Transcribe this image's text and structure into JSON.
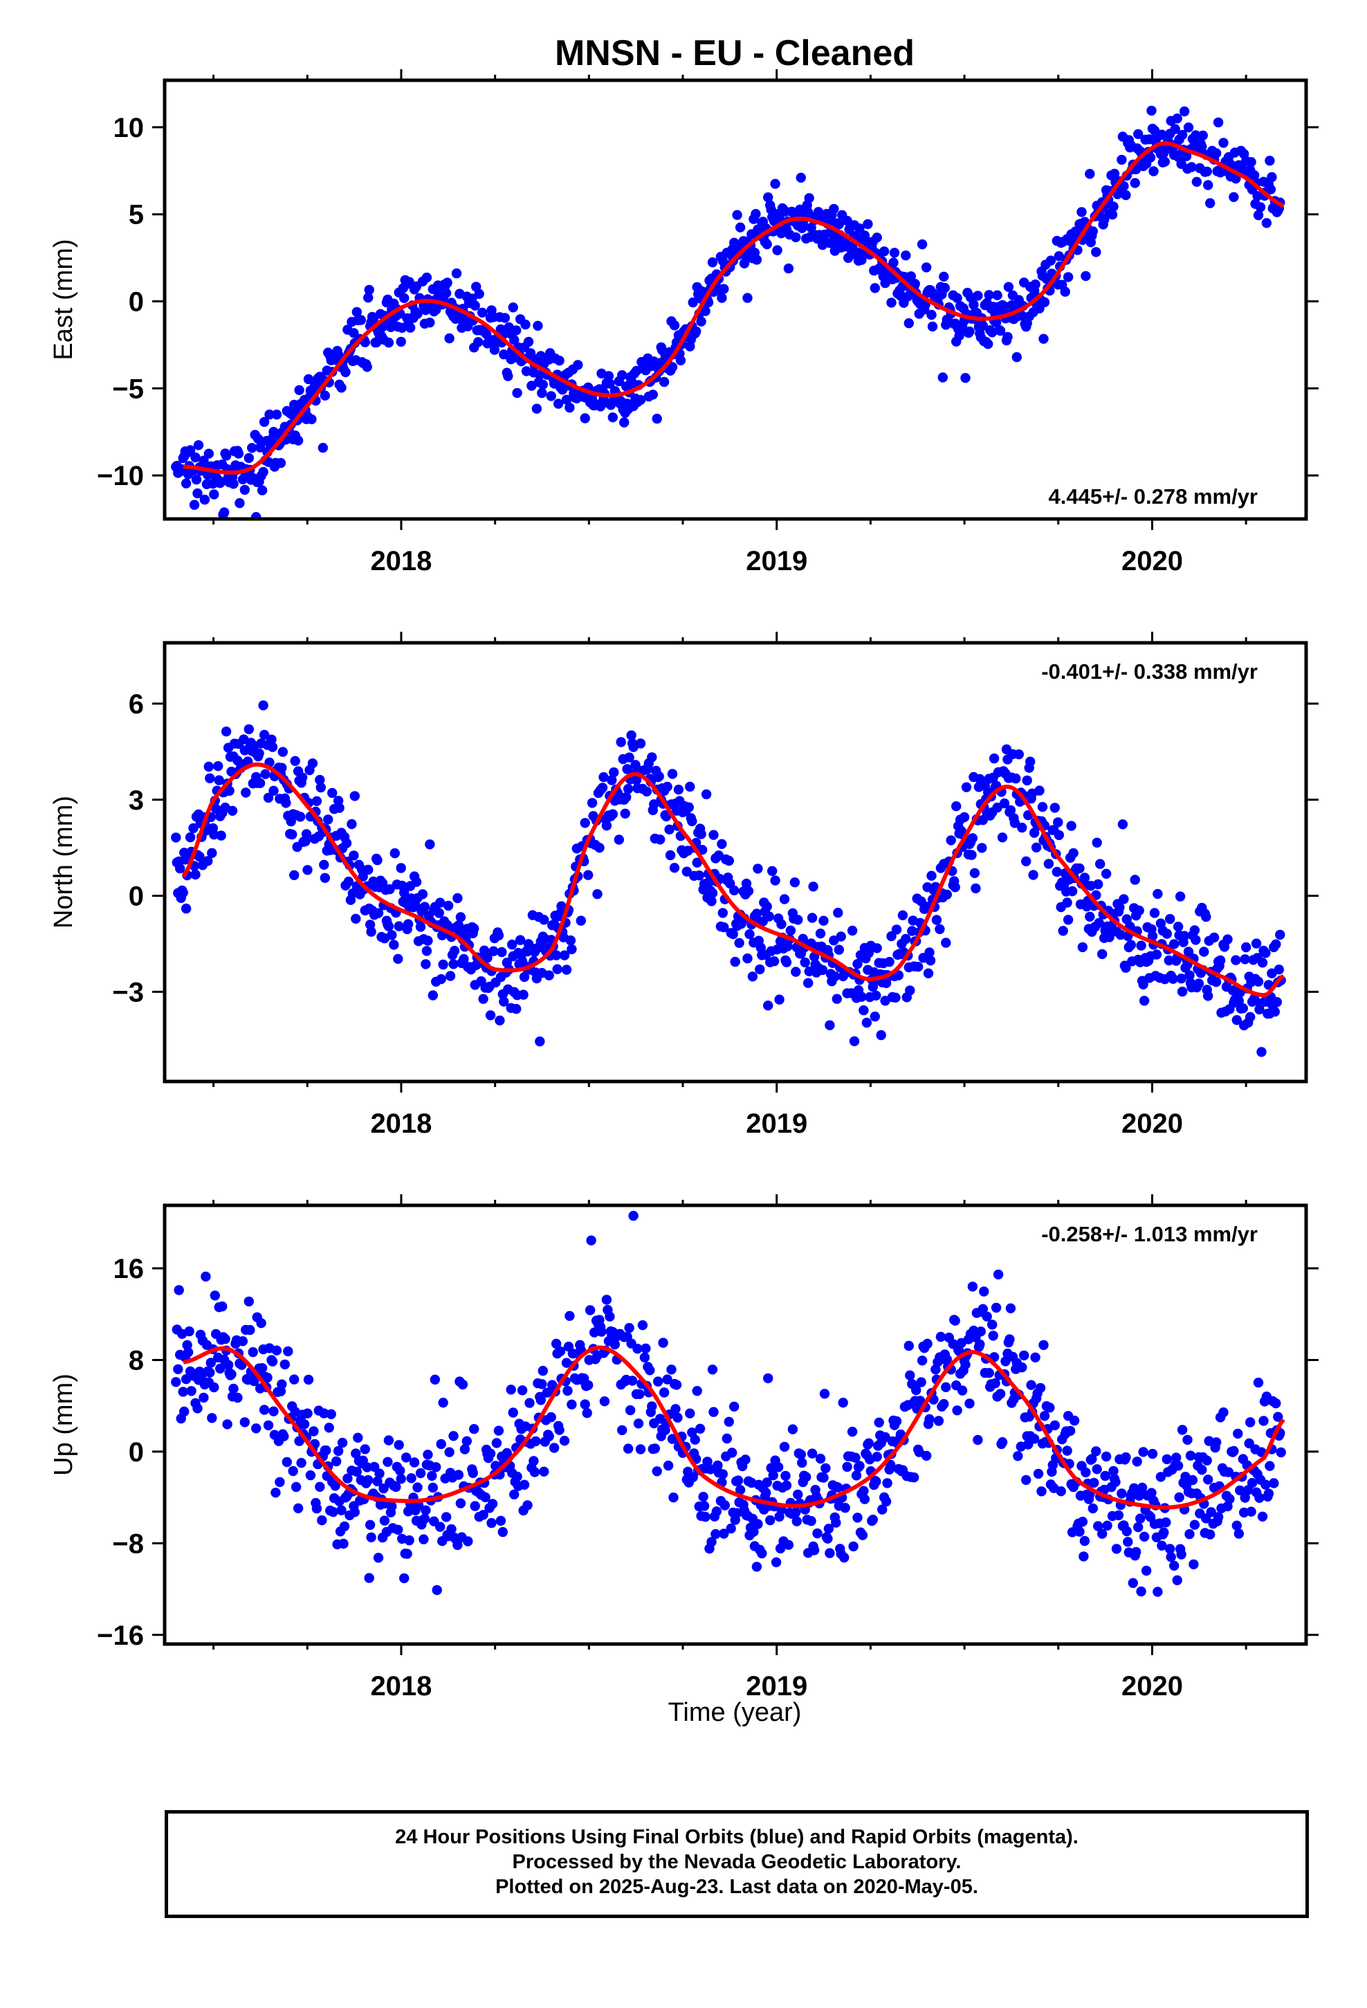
{
  "title": "MNSN  - EU - Cleaned",
  "x_axis_label": "Time (year)",
  "footer": {
    "line1": "24 Hour Positions Using Final Orbits (blue) and Rapid Orbits (magenta).",
    "line2": "Processed by the Nevada Geodetic Laboratory.",
    "line3": "Plotted on 2025-Aug-23. Last data on 2020-May-05."
  },
  "colors": {
    "data_points": "#0000ff",
    "model_curve": "#ff0000",
    "frame": "#000000"
  },
  "chart_data": [
    {
      "type": "scatter",
      "ylabel": "East (mm)",
      "rate_label": "4.445+/- 0.278 mm/yr",
      "xlim": [
        2017.37,
        2020.41
      ],
      "ylim": [
        -12.5,
        12.7
      ],
      "xticks": [
        2018,
        2019,
        2020
      ],
      "yticks": [
        -10,
        -5,
        0,
        5,
        10
      ],
      "yticklabels": [
        "−10",
        "−5",
        "0",
        "5",
        "10"
      ],
      "grid": false,
      "series": [
        {
          "x": [
            2017.42,
            2017.6,
            2017.75,
            2017.9,
            2018.05,
            2018.2,
            2018.35,
            2018.55,
            2018.7,
            2018.85,
            2019.0,
            2019.1,
            2019.25,
            2019.4,
            2019.55,
            2019.7,
            2019.85,
            2020.0,
            2020.1,
            2020.25,
            2020.35
          ],
          "y": [
            -9.5,
            -9.6,
            -6.0,
            -2.0,
            0.0,
            -1.0,
            -3.6,
            -5.4,
            -3.8,
            1.5,
            4.3,
            4.6,
            2.8,
            0.1,
            -1.0,
            0.3,
            5.0,
            8.8,
            8.6,
            7.1,
            5.5
          ]
        }
      ]
    },
    {
      "type": "scatter",
      "ylabel": "North (mm)",
      "rate_label": "-0.401+/- 0.338 mm/yr",
      "xlim": [
        2017.37,
        2020.41
      ],
      "ylim": [
        -5.8,
        7.9
      ],
      "xticks": [
        2018,
        2019,
        2020
      ],
      "yticks": [
        -3,
        0,
        3,
        6
      ],
      "yticklabels": [
        "−3",
        "0",
        "3",
        "6"
      ],
      "grid": false,
      "series": [
        {
          "x": [
            2017.42,
            2017.5,
            2017.62,
            2017.75,
            2017.9,
            2018.05,
            2018.15,
            2018.25,
            2018.4,
            2018.5,
            2018.62,
            2018.75,
            2018.9,
            2019.05,
            2019.15,
            2019.25,
            2019.35,
            2019.5,
            2019.62,
            2019.75,
            2019.9,
            2020.05,
            2020.2,
            2020.3,
            2020.35
          ],
          "y": [
            0.6,
            3.0,
            4.1,
            2.8,
            0.3,
            -0.7,
            -1.3,
            -2.3,
            -1.7,
            1.8,
            3.8,
            2.0,
            -0.5,
            -1.4,
            -2.0,
            -2.6,
            -1.8,
            1.8,
            3.4,
            1.2,
            -0.8,
            -1.7,
            -2.6,
            -3.1,
            -2.5
          ]
        }
      ]
    },
    {
      "type": "scatter",
      "ylabel": "Up (mm)",
      "rate_label": "-0.258+/- 1.013 mm/yr",
      "xlim": [
        2017.37,
        2020.41
      ],
      "ylim": [
        -16.8,
        21.5
      ],
      "xticks": [
        2018,
        2019,
        2020
      ],
      "yticks": [
        -16,
        -8,
        0,
        8,
        16
      ],
      "yticklabels": [
        "−16",
        "−8",
        "0",
        "8",
        "16"
      ],
      "grid": false,
      "series": [
        {
          "x": [
            2017.42,
            2017.55,
            2017.7,
            2017.85,
            2018.0,
            2018.15,
            2018.3,
            2018.5,
            2018.65,
            2018.8,
            2019.0,
            2019.15,
            2019.3,
            2019.5,
            2019.65,
            2019.8,
            2020.0,
            2020.15,
            2020.3,
            2020.35
          ],
          "y": [
            7.8,
            8.8,
            3.0,
            -3.0,
            -4.3,
            -3.5,
            -0.3,
            8.8,
            6.0,
            -2.0,
            -4.6,
            -4.0,
            -0.5,
            8.5,
            5.0,
            -2.5,
            -4.8,
            -4.0,
            -0.5,
            2.8
          ]
        }
      ]
    }
  ]
}
